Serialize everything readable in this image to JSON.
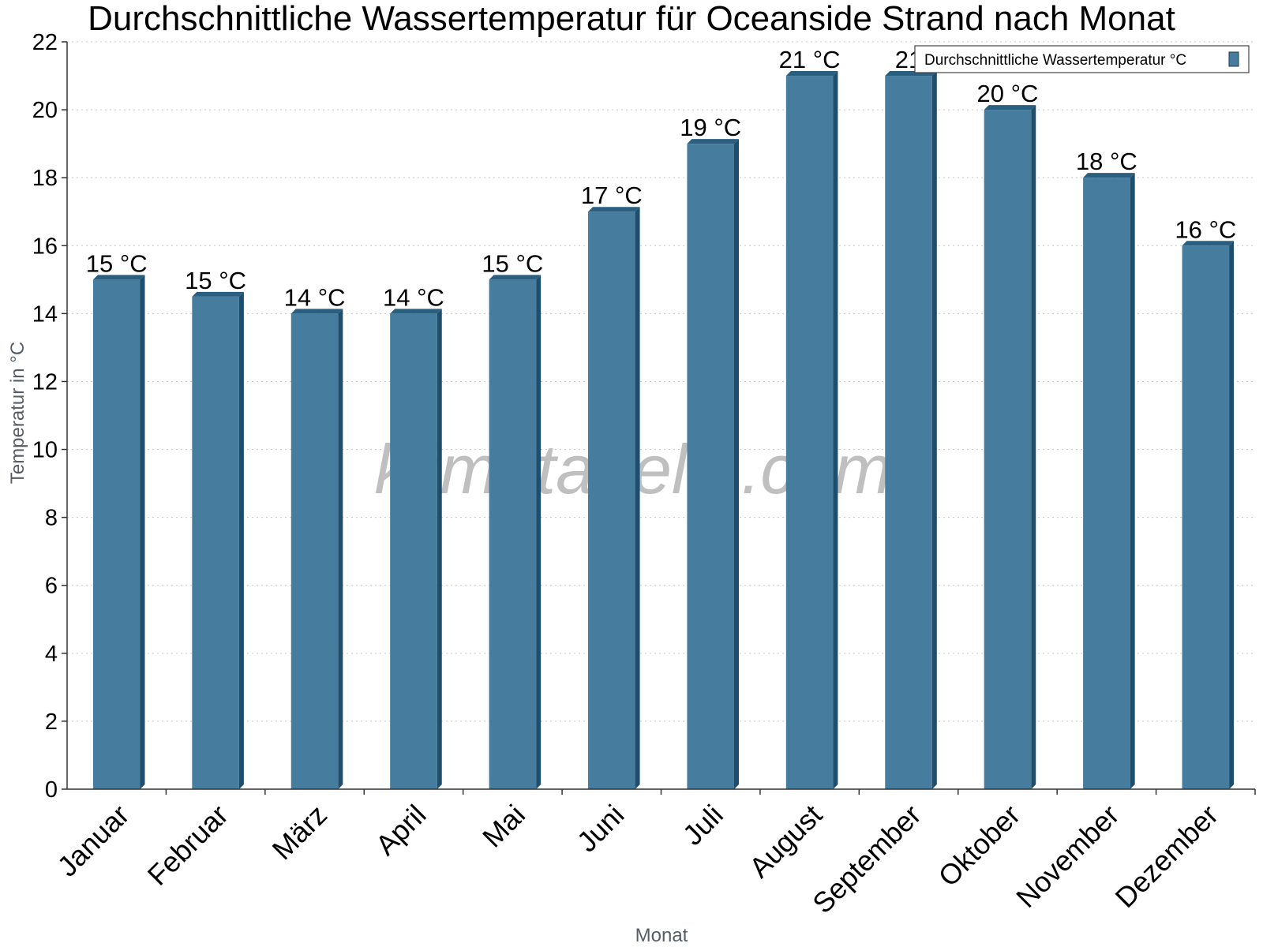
{
  "chart_data": {
    "type": "bar",
    "title": "Durchschnittliche Wassertemperatur für Oceanside Strand nach Monat",
    "xlabel": "Monat",
    "ylabel": "Temperatur in °C",
    "ylim": [
      0,
      22
    ],
    "yticks": [
      0,
      2,
      4,
      6,
      8,
      10,
      12,
      14,
      16,
      18,
      20,
      22
    ],
    "grid": true,
    "legend_position": "top-right",
    "watermark": "klimatabelle.com",
    "categories": [
      "Januar",
      "Februar",
      "März",
      "April",
      "Mai",
      "Juni",
      "Juli",
      "August",
      "September",
      "Oktober",
      "November",
      "Dezember"
    ],
    "series": [
      {
        "name": "Durchschnittliche Wassertemperatur °C",
        "values": [
          15,
          14.5,
          14,
          14,
          15,
          17,
          19,
          21,
          21,
          20,
          18,
          16
        ],
        "data_labels": [
          "15 °C",
          "15 °C",
          "14 °C",
          "14 °C",
          "15 °C",
          "17 °C",
          "19 °C",
          "21 °C",
          "21",
          "20 °C",
          "18 °C",
          "16 °C"
        ]
      }
    ],
    "colors": {
      "bar_front": "#467c9e",
      "bar_side": "#1f4d6c",
      "bar_top": "#2b5f80"
    }
  }
}
